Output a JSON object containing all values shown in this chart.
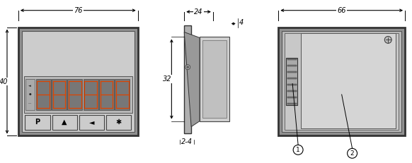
{
  "bg_color": "#ffffff",
  "line_color": "#000000",
  "gray_fill": "#d0d0d0",
  "light_gray": "#e8e8e8",
  "dark_gray": "#888888",
  "label1_text": "1",
  "label2_text": "2",
  "dim_76": "76",
  "dim_40": "40",
  "dim_24": "24",
  "dim_4": "4",
  "dim_32": "32",
  "dim_2_4": "2-4",
  "dim_66": "66",
  "btn_labels": [
    "P",
    "▲",
    "◄",
    "✱"
  ],
  "n_digits": 6,
  "n_pins": 8
}
